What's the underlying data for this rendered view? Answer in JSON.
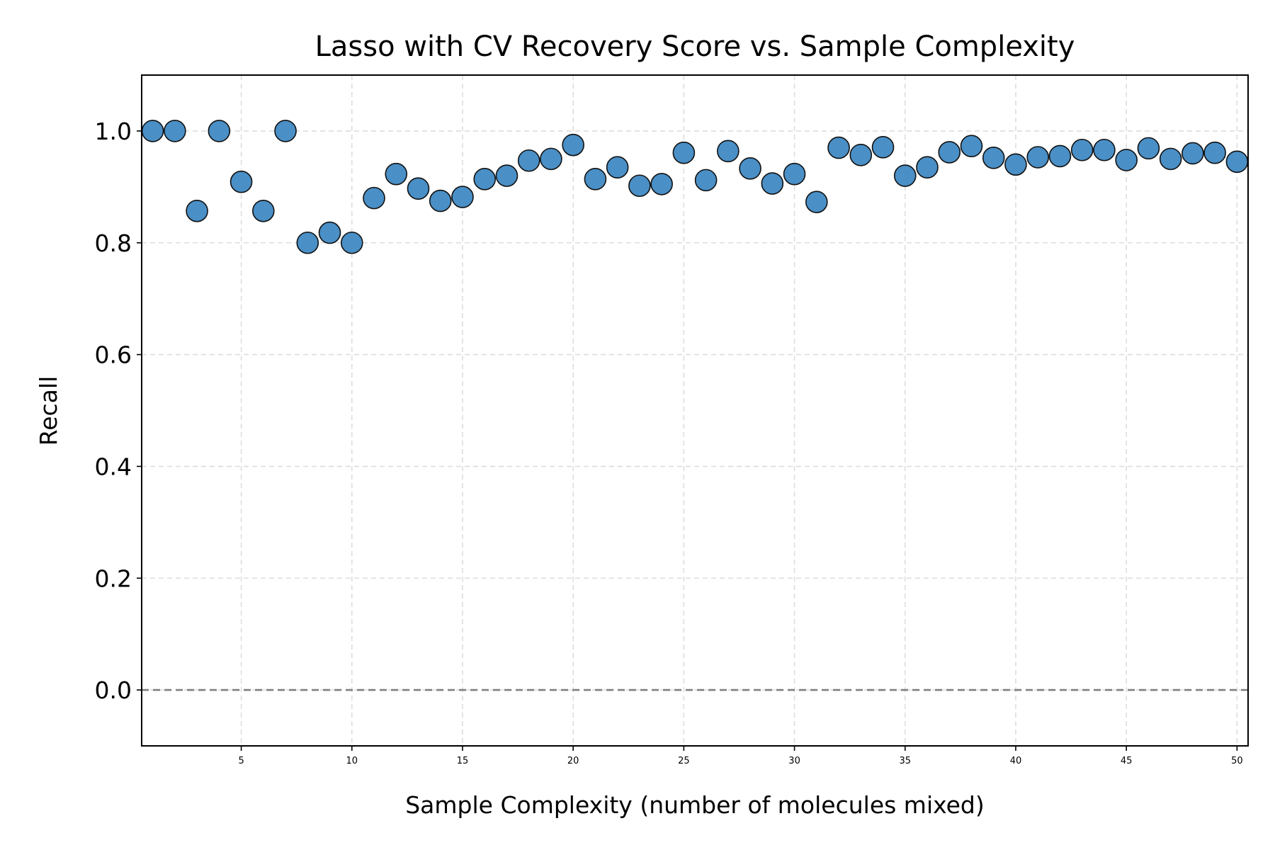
{
  "chart_data": {
    "type": "scatter",
    "title": "Lasso with CV Recovery Score vs. Sample Complexity",
    "xlabel": "Sample Complexity (number of molecules mixed)",
    "ylabel": "Recall",
    "xlim": [
      0.5,
      50.5
    ],
    "ylim": [
      -0.1,
      1.1
    ],
    "xticks": [
      5,
      10,
      15,
      20,
      25,
      30,
      35,
      40,
      45,
      50
    ],
    "yticks": [
      "0.0",
      "0.2",
      "0.4",
      "0.6",
      "0.8",
      "1.0"
    ],
    "grid": true,
    "reference_line_y": 0.0,
    "point_color": "#4a8fc6",
    "reference_line_color": "#808080",
    "series": [
      {
        "x": [
          1,
          2,
          3,
          4,
          5,
          6,
          7,
          8,
          9,
          10,
          11,
          12,
          13,
          14,
          15,
          16,
          17,
          18,
          19,
          20,
          21,
          22,
          23,
          24,
          25,
          26,
          27,
          28,
          29,
          30,
          31,
          32,
          33,
          34,
          35,
          36,
          37,
          38,
          39,
          40,
          41,
          42,
          43,
          44,
          45,
          46,
          47,
          48,
          49,
          50
        ],
        "y": [
          1.0,
          1.0,
          0.857,
          1.0,
          0.909,
          0.857,
          1.0,
          0.8,
          0.818,
          0.8,
          0.88,
          0.923,
          0.897,
          0.875,
          0.882,
          0.914,
          0.92,
          0.947,
          0.95,
          0.975,
          0.914,
          0.935,
          0.902,
          0.905,
          0.961,
          0.912,
          0.964,
          0.933,
          0.906,
          0.923,
          0.873,
          0.97,
          0.957,
          0.971,
          0.92,
          0.935,
          0.962,
          0.973,
          0.952,
          0.94,
          0.953,
          0.955,
          0.966,
          0.966,
          0.948,
          0.969,
          0.95,
          0.96,
          0.961,
          0.945
        ]
      }
    ]
  }
}
